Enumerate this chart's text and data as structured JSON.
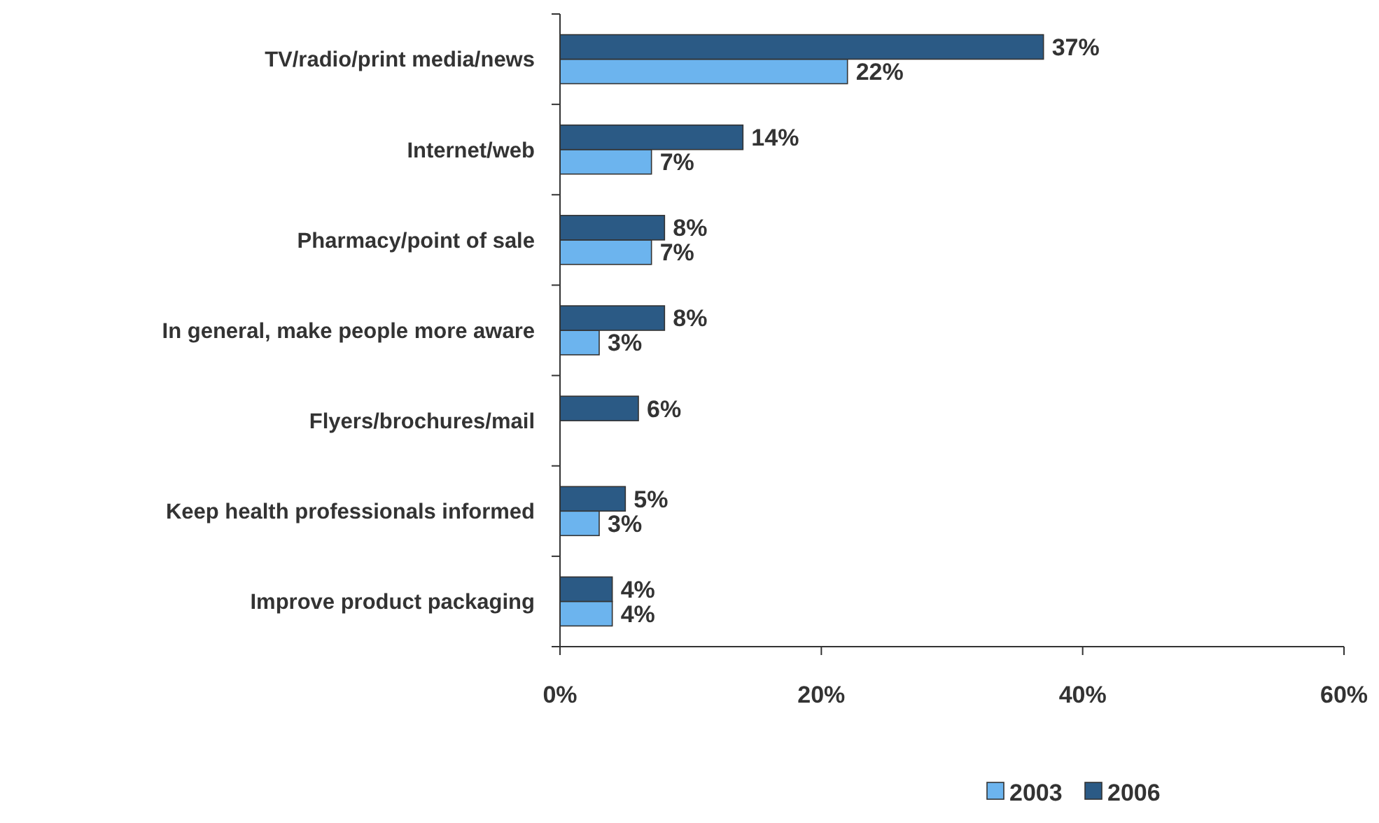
{
  "chart_data": {
    "type": "bar",
    "orientation": "horizontal",
    "categories": [
      "TV/radio/print media/news",
      "Internet/web",
      "Pharmacy/point of sale",
      "In general, make people more aware",
      "Flyers/brochures/mail",
      "Keep health professionals informed",
      "Improve product packaging"
    ],
    "series": [
      {
        "name": "2003",
        "color": "#6cb4ee",
        "values": [
          22,
          7,
          7,
          3,
          null,
          3,
          4
        ],
        "value_labels": [
          "22%",
          "7%",
          "7%",
          "3%",
          null,
          "3%",
          "4%"
        ]
      },
      {
        "name": "2006",
        "color": "#2b5a85",
        "values": [
          37,
          14,
          8,
          8,
          6,
          5,
          4
        ],
        "value_labels": [
          "37%",
          "14%",
          "8%",
          "8%",
          "6%",
          "5%",
          "4%"
        ]
      }
    ],
    "xlim": [
      0,
      60
    ],
    "xticks": [
      {
        "value": 0,
        "label": "0%"
      },
      {
        "value": 20,
        "label": "20%"
      },
      {
        "value": 40,
        "label": "40%"
      },
      {
        "value": 60,
        "label": "60%"
      }
    ],
    "grid": false,
    "legend": "bottom"
  }
}
